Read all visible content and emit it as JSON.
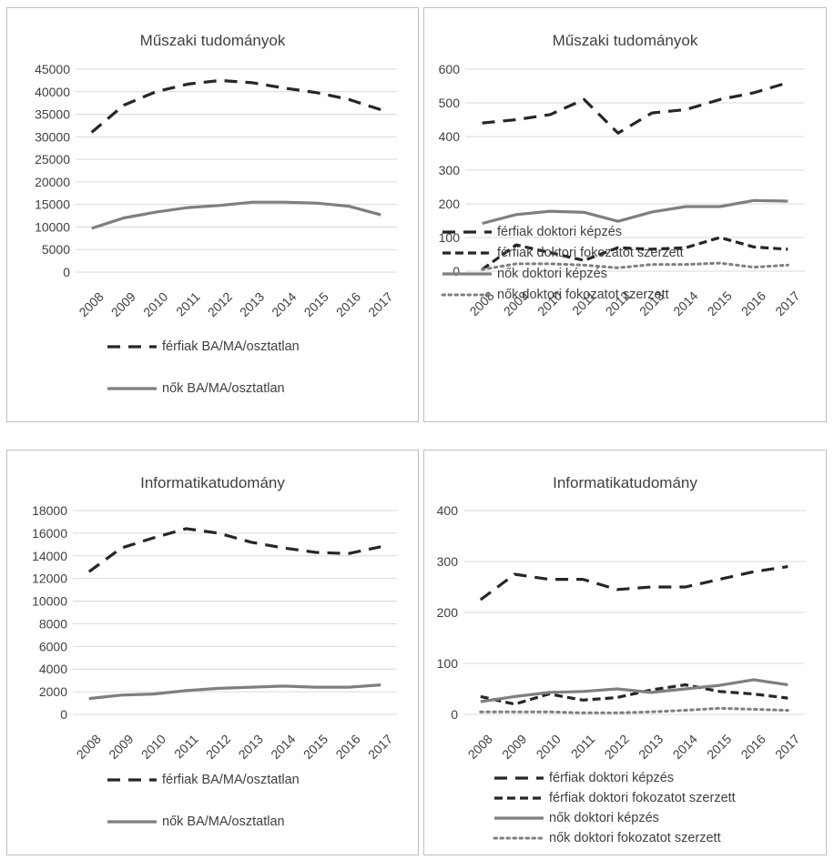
{
  "chart_data": [
    {
      "type": "line",
      "title": "Műszaki tudományok",
      "x": [
        "2008",
        "2009",
        "2010",
        "2011",
        "2012",
        "2013",
        "2014",
        "2015",
        "2016",
        "2017"
      ],
      "ylim": [
        0,
        45000
      ],
      "yticks": [
        0,
        5000,
        10000,
        15000,
        20000,
        25000,
        30000,
        35000,
        40000,
        45000
      ],
      "grid": true,
      "legend": "bottom",
      "series": [
        {
          "name": "férfiak BA/MA/osztatlan",
          "style": "long-dash",
          "color": "#262626",
          "values": [
            31000,
            37000,
            40000,
            41700,
            42500,
            42000,
            40800,
            39800,
            38300,
            36000
          ]
        },
        {
          "name": "nők BA/MA/osztatlan",
          "style": "solid",
          "color": "#7f7f7f",
          "values": [
            9700,
            12000,
            13300,
            14300,
            14800,
            15500,
            15500,
            15300,
            14600,
            12700
          ]
        }
      ]
    },
    {
      "type": "line",
      "title": "Műszaki tudományok",
      "x": [
        "2008",
        "2009",
        "2010",
        "2011",
        "2012",
        "2013",
        "2014",
        "2015",
        "2016",
        "2017"
      ],
      "ylim": [
        0,
        600
      ],
      "yticks": [
        0,
        100,
        200,
        300,
        400,
        500,
        600
      ],
      "grid": true,
      "legend": "bottom",
      "series": [
        {
          "name": "férfiak doktori képzés",
          "style": "long-dash",
          "color": "#262626",
          "values": [
            440,
            450,
            465,
            510,
            410,
            470,
            480,
            510,
            530,
            560
          ]
        },
        {
          "name": "férfiak doktori fokozatot szerzett",
          "style": "dash",
          "color": "#262626",
          "values": [
            5,
            78,
            55,
            32,
            70,
            65,
            70,
            100,
            72,
            65
          ]
        },
        {
          "name": "nők doktori képzés",
          "style": "solid",
          "color": "#7f7f7f",
          "values": [
            142,
            168,
            178,
            175,
            148,
            176,
            192,
            192,
            210,
            208
          ]
        },
        {
          "name": "nők doktori fokozatot szerzett",
          "style": "dot",
          "color": "#7f7f7f",
          "values": [
            5,
            22,
            22,
            18,
            10,
            20,
            20,
            24,
            12,
            18
          ]
        }
      ]
    },
    {
      "type": "line",
      "title": "Informatikatudomány",
      "x": [
        "2008",
        "2009",
        "2010",
        "2011",
        "2012",
        "2013",
        "2014",
        "2015",
        "2016",
        "2017"
      ],
      "ylim": [
        0,
        18000
      ],
      "yticks": [
        0,
        2000,
        4000,
        6000,
        8000,
        10000,
        12000,
        14000,
        16000,
        18000
      ],
      "grid": true,
      "legend": "bottom",
      "series": [
        {
          "name": "férfiak BA/MA/osztatlan",
          "style": "long-dash",
          "color": "#262626",
          "values": [
            12600,
            14700,
            15600,
            16400,
            16000,
            15200,
            14700,
            14300,
            14200,
            14800
          ]
        },
        {
          "name": "nők BA/MA/osztatlan",
          "style": "solid",
          "color": "#7f7f7f",
          "values": [
            1400,
            1700,
            1800,
            2100,
            2300,
            2400,
            2500,
            2400,
            2400,
            2600
          ]
        }
      ]
    },
    {
      "type": "line",
      "title": "Informatikatudomány",
      "x": [
        "2008",
        "2009",
        "2010",
        "2011",
        "2012",
        "2013",
        "2014",
        "2015",
        "2016",
        "2017"
      ],
      "ylim": [
        0,
        400
      ],
      "yticks": [
        0,
        100,
        200,
        300,
        400
      ],
      "grid": true,
      "legend": "bottom",
      "series": [
        {
          "name": "férfiak doktori képzés",
          "style": "long-dash",
          "color": "#262626",
          "values": [
            225,
            275,
            265,
            265,
            245,
            250,
            250,
            265,
            280,
            290
          ]
        },
        {
          "name": "férfiak doktori fokozatot szerzett",
          "style": "dash",
          "color": "#262626",
          "values": [
            35,
            20,
            40,
            28,
            33,
            48,
            58,
            45,
            40,
            32
          ]
        },
        {
          "name": "nők doktori képzés",
          "style": "solid",
          "color": "#7f7f7f",
          "values": [
            25,
            35,
            43,
            45,
            50,
            43,
            50,
            57,
            68,
            58
          ]
        },
        {
          "name": "nők doktori fokozatot szerzett",
          "style": "dot",
          "color": "#7f7f7f",
          "values": [
            5,
            5,
            5,
            3,
            3,
            5,
            8,
            12,
            10,
            8
          ]
        }
      ]
    }
  ]
}
